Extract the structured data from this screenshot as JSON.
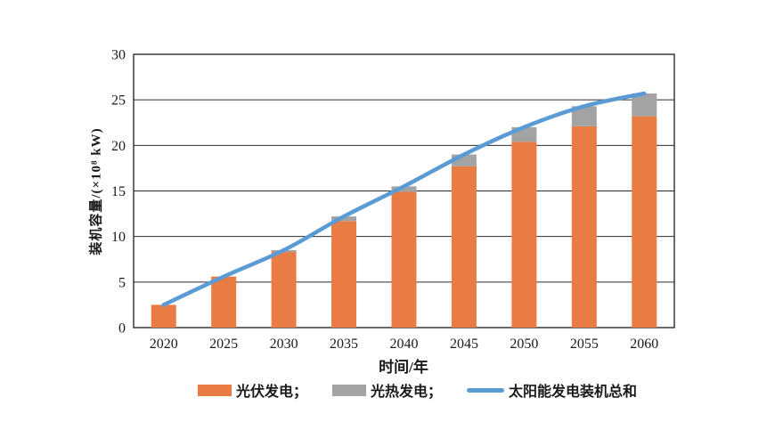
{
  "page": {
    "background_color": "#ffffff"
  },
  "chart_data": {
    "type": "bar",
    "stacked": true,
    "overlay": "line",
    "categories": [
      "2020",
      "2025",
      "2030",
      "2035",
      "2040",
      "2045",
      "2050",
      "2055",
      "2060"
    ],
    "series": [
      {
        "name": "光伏发电",
        "type": "bar",
        "color": "#E87C44",
        "values": [
          2.5,
          5.6,
          8.3,
          11.7,
          14.9,
          17.7,
          20.4,
          22.1,
          23.2
        ]
      },
      {
        "name": "光热发电",
        "type": "bar",
        "color": "#A3A3A3",
        "values": [
          0,
          0,
          0.2,
          0.5,
          0.6,
          1.3,
          1.6,
          2.2,
          2.5
        ]
      },
      {
        "name": "太阳能发电装机总和",
        "type": "line",
        "color": "#5B9BD5",
        "values": [
          2.5,
          5.6,
          8.5,
          12.2,
          15.5,
          19.0,
          22.0,
          24.3,
          25.7
        ]
      }
    ],
    "title": "",
    "xlabel": "时间/年",
    "ylabel": "装机容量/(×10⁸ kW)",
    "ylim": [
      0,
      30
    ],
    "ytick_step": 5,
    "yticks": [
      "0",
      "5",
      "10",
      "15",
      "20",
      "25",
      "30"
    ],
    "grid": true,
    "grid_color": "#2b2b2b",
    "legend_position": "bottom"
  },
  "legend": {
    "items": [
      {
        "label": "光伏发电；",
        "marker": "swatch",
        "color": "#E87C44"
      },
      {
        "label": "光热发电；",
        "marker": "swatch",
        "color": "#A3A3A3"
      },
      {
        "label": "太阳能发电装机总和",
        "marker": "line",
        "color": "#5B9BD5"
      }
    ]
  }
}
